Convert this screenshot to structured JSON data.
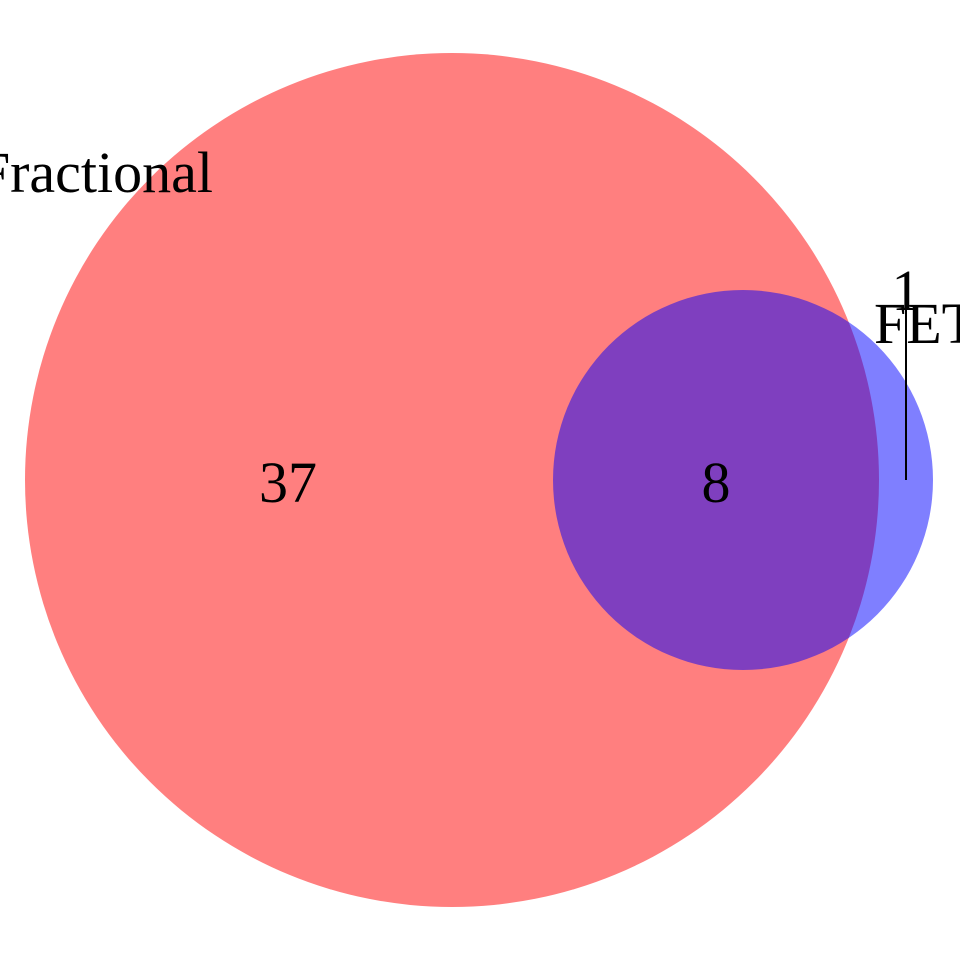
{
  "sets": [
    {
      "label": "Fractional",
      "color": "#ff0000",
      "opacity": 0.5
    },
    {
      "label": "FET",
      "color": "#0000ff",
      "opacity": 0.5
    }
  ],
  "regions": {
    "only_first": "37",
    "intersection": "8",
    "only_second": "1"
  }
}
